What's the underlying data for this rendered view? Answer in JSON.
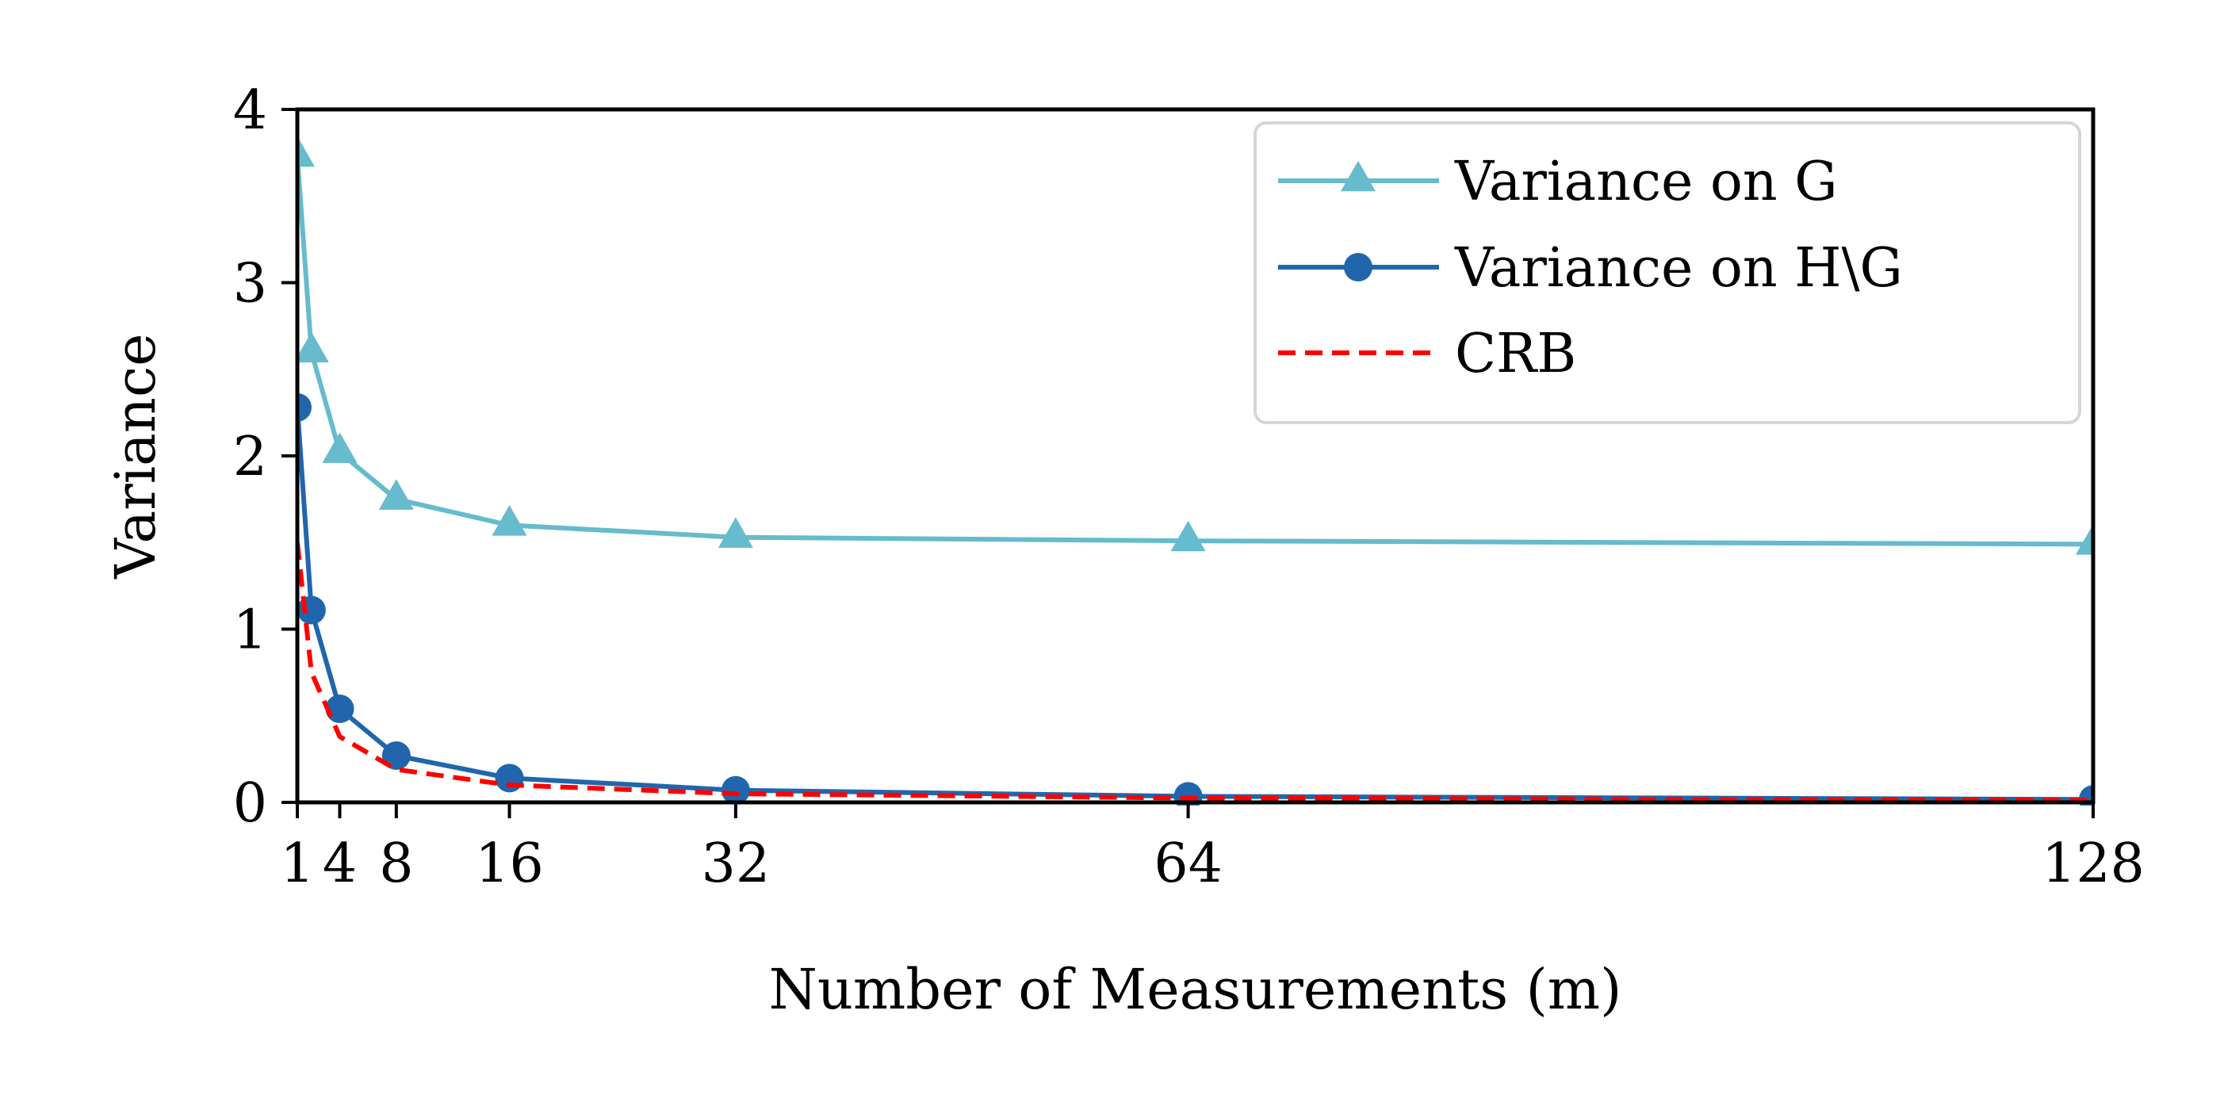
{
  "chart_data": {
    "type": "line",
    "xlabel": "Number of Measurements (m)",
    "ylabel": "Variance",
    "xlim": [
      1,
      128
    ],
    "ylim": [
      0,
      4
    ],
    "xticks": [
      1,
      4,
      8,
      16,
      32,
      64,
      128
    ],
    "xtick_labels": [
      "1",
      "4",
      "8",
      "16",
      "32",
      "64",
      "128"
    ],
    "yticks": [
      0,
      1,
      2,
      3,
      4
    ],
    "ytick_labels": [
      "0",
      "1",
      "2",
      "3",
      "4"
    ],
    "grid": false,
    "legend_position": "top-right",
    "series": [
      {
        "name": "Variance on G",
        "color": "#66bbcc",
        "marker": "triangle",
        "dash": "solid",
        "x": [
          1,
          2,
          4,
          8,
          16,
          32,
          64,
          128
        ],
        "y": [
          3.73,
          2.6,
          2.02,
          1.75,
          1.6,
          1.53,
          1.51,
          1.49
        ]
      },
      {
        "name": "Variance on H\\G",
        "color": "#2166ac",
        "marker": "circle",
        "dash": "solid",
        "x": [
          1,
          2,
          4,
          8,
          16,
          32,
          64,
          128
        ],
        "y": [
          2.28,
          1.11,
          0.54,
          0.27,
          0.14,
          0.07,
          0.035,
          0.017
        ]
      },
      {
        "name": "CRB",
        "color": "#ff0000",
        "marker": "none",
        "dash": "dashed",
        "x": [
          1,
          2,
          4,
          8,
          16,
          32,
          64,
          128
        ],
        "y": [
          1.5,
          0.75,
          0.38,
          0.19,
          0.1,
          0.05,
          0.025,
          0.012
        ]
      }
    ]
  }
}
